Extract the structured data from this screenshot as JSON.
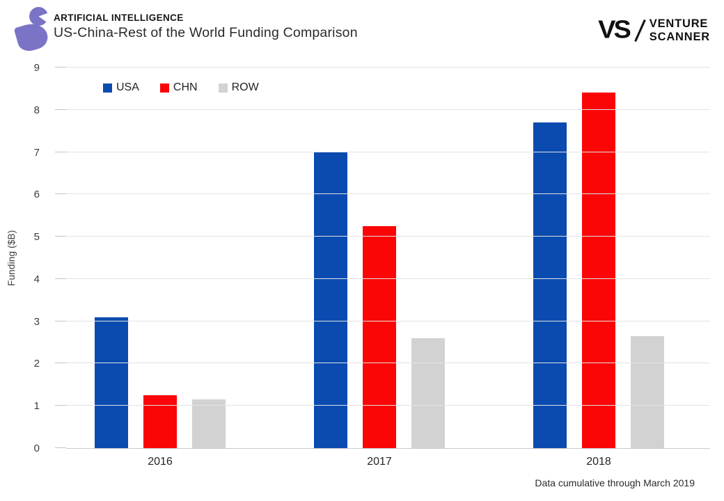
{
  "header": {
    "kicker": "ARTIFICIAL INTELLIGENCE",
    "title": "US-China-Rest of the World Funding Comparison",
    "brand": {
      "monogram": "VS",
      "name_line1": "VENTURE",
      "name_line2": "SCANNER"
    },
    "logo_color": "#7b74c6"
  },
  "chart_data": {
    "type": "bar",
    "title": "US-China-Rest of the World Funding Comparison",
    "categories": [
      "2016",
      "2017",
      "2018"
    ],
    "series": [
      {
        "name": "USA",
        "color": "#0b4bb0",
        "values": [
          3.1,
          7.0,
          7.7
        ]
      },
      {
        "name": "CHN",
        "color": "#fb0606",
        "values": [
          1.25,
          5.25,
          8.4
        ]
      },
      {
        "name": "ROW",
        "color": "#d2d2d2",
        "values": [
          1.15,
          2.6,
          2.65
        ]
      }
    ],
    "ylabel": "Funding ($B)",
    "xlabel": "",
    "ylim": [
      0,
      9
    ],
    "yticks": [
      0,
      1,
      2,
      3,
      4,
      5,
      6,
      7,
      8,
      9
    ],
    "grid": true,
    "legend_position": "top-left"
  },
  "footer": {
    "note": "Data cumulative through March 2019"
  }
}
